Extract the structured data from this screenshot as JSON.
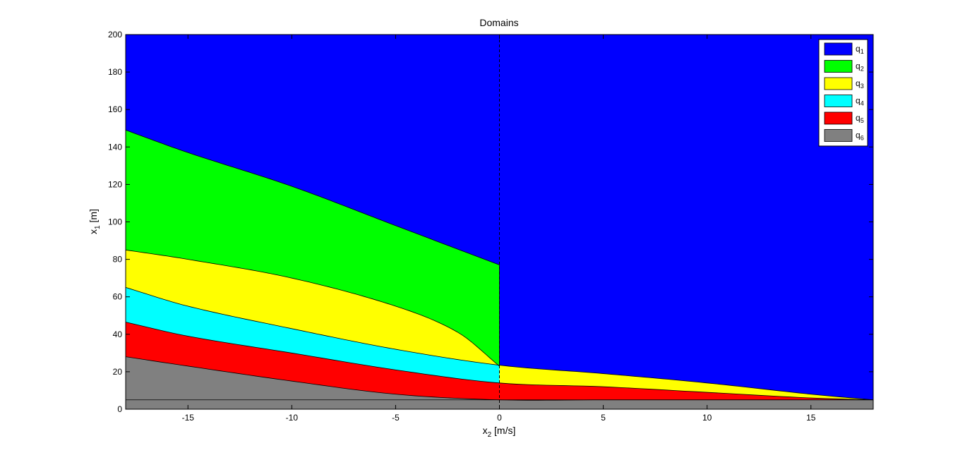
{
  "chart_data": {
    "type": "area",
    "title": "Domains",
    "xlabel": {
      "main": "x",
      "sub": "2",
      "unit": "  [m/s]"
    },
    "ylabel": {
      "main": "x",
      "sub": "1",
      "unit": "  [m]"
    },
    "xlim": [
      -18,
      18
    ],
    "ylim": [
      0,
      200
    ],
    "xticks": [
      -15,
      -10,
      -5,
      0,
      5,
      10,
      15
    ],
    "xtick_labels": [
      "-15",
      "-10",
      "-5",
      "0",
      "5",
      "10",
      "15"
    ],
    "yticks": [
      0,
      20,
      40,
      60,
      80,
      100,
      120,
      140,
      160,
      180,
      200
    ],
    "ytick_labels": [
      "0",
      "20",
      "40",
      "60",
      "80",
      "100",
      "120",
      "140",
      "160",
      "180",
      "200"
    ],
    "grid": false,
    "legend_position": "top-right",
    "vertical_dashed_line_x": 0,
    "boundaries": {
      "q1_q2": {
        "x": [
          -18,
          -15,
          -10,
          -5,
          0
        ],
        "y": [
          149,
          137,
          119,
          98,
          77
        ]
      },
      "q2_q3": {
        "x": [
          -18,
          -15,
          -10,
          -5,
          -2,
          0
        ],
        "y": [
          85,
          80,
          70,
          55,
          41,
          23
        ]
      },
      "q3_q4": {
        "x": [
          -18,
          -15,
          -10,
          -5,
          0,
          5,
          10,
          15,
          18
        ],
        "y": [
          65,
          55,
          43,
          32,
          23.5,
          19,
          14,
          8,
          5
        ]
      },
      "q4_q5": {
        "x": [
          -18,
          -15,
          -10,
          -5,
          0,
          5,
          10,
          15,
          18
        ],
        "y": [
          46.5,
          39,
          30,
          21,
          14,
          12,
          9,
          6,
          5
        ]
      },
      "q5_q6": {
        "x": [
          -18,
          -15,
          -10,
          -5,
          0,
          5,
          10,
          15,
          18
        ],
        "y": [
          28,
          23,
          15,
          8,
          5,
          5,
          5,
          5,
          5
        ]
      },
      "q6_floor": {
        "x": [
          -18,
          18
        ],
        "y": [
          5,
          5
        ]
      }
    },
    "series": [
      {
        "name": "q",
        "sub": "1",
        "color": "#0000ff"
      },
      {
        "name": "q",
        "sub": "2",
        "color": "#00ff00"
      },
      {
        "name": "q",
        "sub": "3",
        "color": "#ffff00"
      },
      {
        "name": "q",
        "sub": "4",
        "color": "#00ffff"
      },
      {
        "name": "q",
        "sub": "5",
        "color": "#ff0000"
      },
      {
        "name": "q",
        "sub": "6",
        "color": "#808080"
      }
    ]
  }
}
